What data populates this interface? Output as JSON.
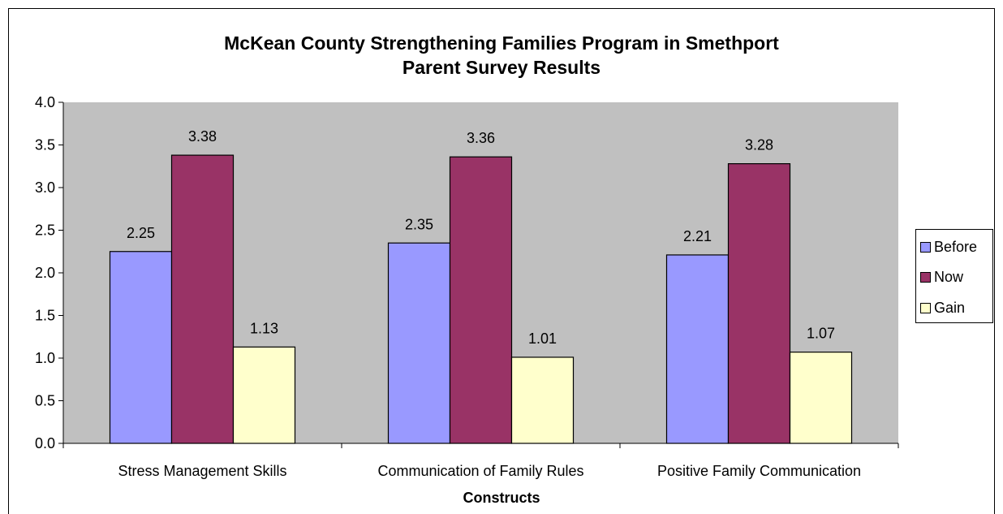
{
  "chart_data": {
    "type": "bar",
    "title": [
      "McKean County Strengthening Families Program in Smethport",
      "Parent Survey Results"
    ],
    "xlabel": "Constructs",
    "ylabel": "",
    "categories": [
      "Stress Management Skills",
      "Communication of Family Rules",
      "Positive Family Communication"
    ],
    "series": [
      {
        "name": "Before",
        "values": [
          2.25,
          2.35,
          2.21
        ],
        "color": "#9999ff"
      },
      {
        "name": "Now",
        "values": [
          3.38,
          3.36,
          3.28
        ],
        "color": "#993366"
      },
      {
        "name": "Gain",
        "values": [
          1.13,
          1.01,
          1.07
        ],
        "color": "#ffffcc"
      }
    ],
    "data_labels": [
      [
        "2.25",
        "2.35",
        "2.21"
      ],
      [
        "3.38",
        "3.36",
        "3.28"
      ],
      [
        "1.13",
        "1.01",
        "1.07"
      ]
    ],
    "ylim": [
      0,
      4.0
    ],
    "yticks": [
      "0.0",
      "0.5",
      "1.0",
      "1.5",
      "2.0",
      "2.5",
      "3.0",
      "3.5",
      "4.0"
    ],
    "ytick_values": [
      0,
      0.5,
      1.0,
      1.5,
      2.0,
      2.5,
      3.0,
      3.5,
      4.0
    ],
    "grid": false,
    "plot_background": "#c0c0c0",
    "legend_position": "right"
  }
}
